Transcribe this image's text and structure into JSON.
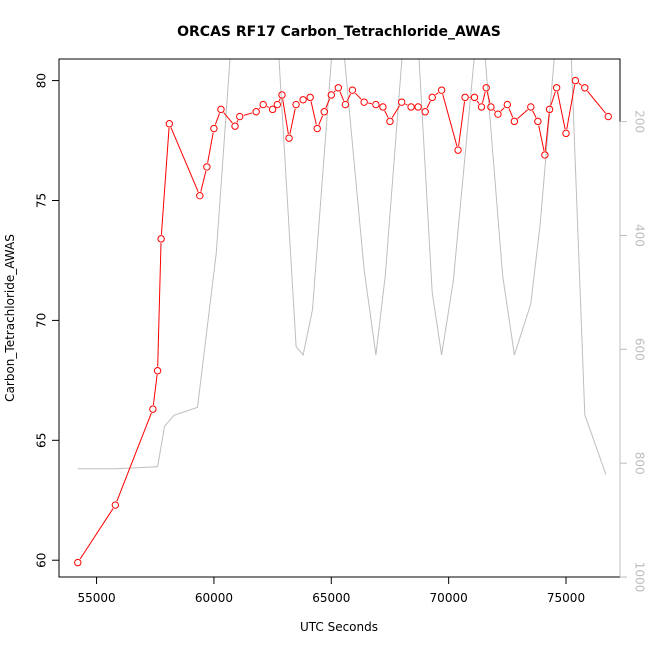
{
  "chart_data": {
    "type": "line",
    "title": "ORCAS RF17 Carbon_Tetrachloride_AWAS",
    "xlabel": "UTC Seconds",
    "ylabel": "Carbon_Tetrachloride_AWAS",
    "xlim": [
      53400,
      77300
    ],
    "ylim": [
      59.3,
      80.9
    ],
    "y2lim": [
      1000,
      90
    ],
    "y2_reversed": true,
    "x_ticks": [
      55000,
      60000,
      65000,
      70000,
      75000
    ],
    "x_tick_labels": [
      "55000",
      "60000",
      "65000",
      "70000",
      "75000"
    ],
    "y_ticks": [
      60,
      65,
      70,
      75,
      80
    ],
    "y_tick_labels": [
      "60",
      "65",
      "70",
      "75",
      "80"
    ],
    "y2_ticks": [
      200,
      400,
      600,
      800,
      1000
    ],
    "y2_tick_labels": [
      "200",
      "400",
      "600",
      "800",
      "1000"
    ],
    "grid": false,
    "colors": {
      "primary": "#ff0000",
      "secondary": "#bebebe",
      "axis": "#000000"
    },
    "series": [
      {
        "color": "#ff0000",
        "marker": "open-circle",
        "axis": "left",
        "x": [
          54200,
          55800,
          57400,
          57600,
          57750,
          58100,
          59400,
          59700,
          60000,
          60300,
          60900,
          61100,
          61800,
          62100,
          62500,
          62700,
          62900,
          63200,
          63500,
          63800,
          64100,
          64400,
          64700,
          65000,
          65300,
          65600,
          65900,
          66400,
          66900,
          67200,
          67500,
          68000,
          68400,
          68700,
          69000,
          69300,
          69700,
          70400,
          70700,
          71100,
          71400,
          71600,
          71800,
          72100,
          72500,
          72800,
          73500,
          73800,
          74100,
          74300,
          74600,
          75000,
          75400,
          75800,
          76800
        ],
        "y": [
          59.9,
          62.3,
          66.3,
          67.9,
          73.4,
          78.2,
          75.2,
          76.4,
          78.0,
          78.8,
          78.1,
          78.5,
          78.7,
          79.0,
          78.8,
          79.0,
          79.4,
          77.6,
          79.0,
          79.2,
          79.3,
          78.0,
          78.7,
          79.4,
          79.7,
          79.0,
          79.6,
          79.1,
          79.0,
          78.9,
          78.3,
          79.1,
          78.9,
          78.9,
          78.7,
          79.3,
          79.6,
          77.1,
          79.3,
          79.3,
          78.9,
          79.7,
          78.9,
          78.6,
          79.0,
          78.3,
          78.9,
          78.3,
          76.9,
          78.8,
          79.7,
          77.8,
          80.0,
          79.7,
          78.5
        ]
      },
      {
        "color": "#bebebe",
        "marker": "none",
        "axis": "right",
        "x": [
          54200,
          55800,
          57600,
          57900,
          58300,
          59300,
          60100,
          60700,
          61300,
          61800,
          62100,
          62700,
          63500,
          63800,
          64200,
          65100,
          65500,
          66400,
          66900,
          67300,
          68100,
          68700,
          69300,
          69700,
          70200,
          71200,
          71500,
          72300,
          72800,
          73500,
          73900,
          74600,
          75200,
          75800,
          76700
        ],
        "y": [
          810,
          810,
          806,
          735,
          716,
          702,
          430,
          80,
          60,
          82,
          78,
          40,
          595,
          610,
          530,
          40,
          60,
          460,
          610,
          470,
          40,
          60,
          500,
          610,
          480,
          40,
          60,
          470,
          610,
          520,
          380,
          40,
          60,
          715,
          820
        ]
      }
    ]
  }
}
